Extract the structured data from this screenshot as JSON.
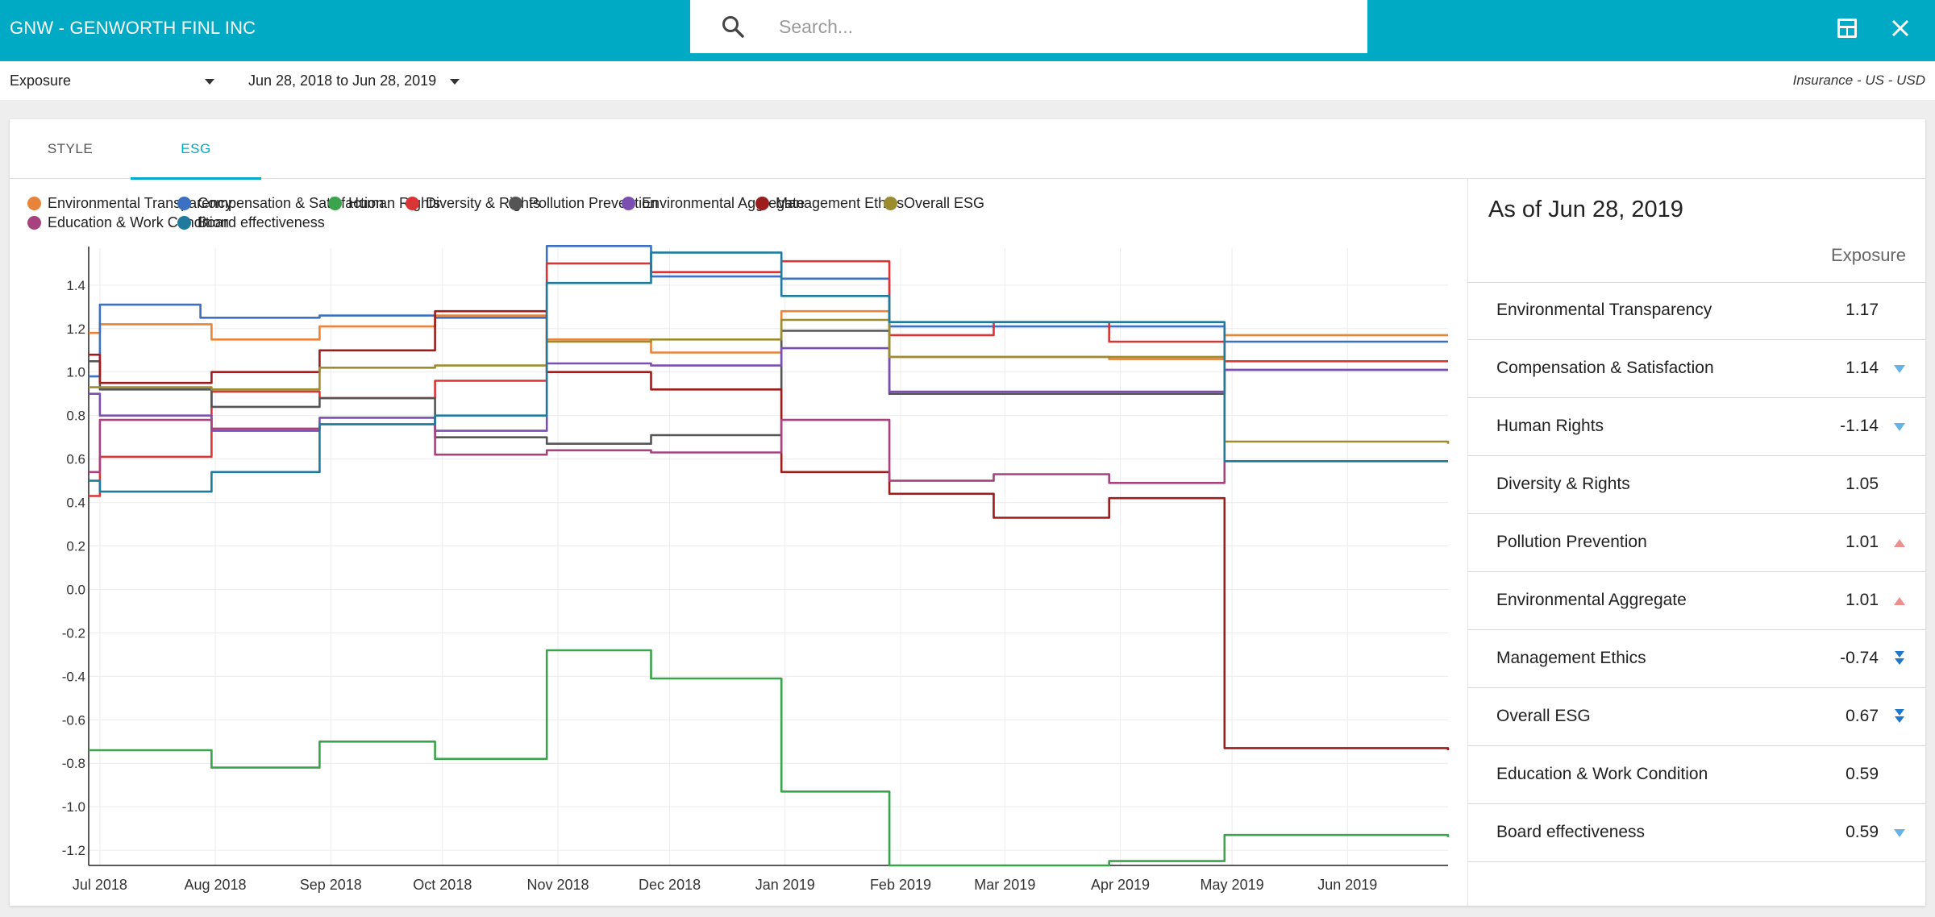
{
  "header": {
    "ticker": "GNW - GENWORTH FINL INC",
    "search_placeholder": "Search...",
    "icons": [
      "search-icon",
      "layout-icon",
      "close-icon"
    ]
  },
  "subheader": {
    "metric": "Exposure",
    "date_range": "Jun 28, 2018 to Jun 28, 2019",
    "sector": "Insurance - US - USD"
  },
  "tabs": [
    {
      "label": "STYLE",
      "active": false
    },
    {
      "label": "ESG",
      "active": true
    }
  ],
  "accent_color": "#00a9c4",
  "side_panel": {
    "title": "As of Jun 28, 2019",
    "column_header": "Exposure",
    "rows": [
      {
        "name": "Environmental Transparency",
        "value": "1.17",
        "arrow": "none"
      },
      {
        "name": "Compensation & Satisfaction",
        "value": "1.14",
        "arrow": "down"
      },
      {
        "name": "Human Rights",
        "value": "-1.14",
        "arrow": "down"
      },
      {
        "name": "Diversity & Rights",
        "value": "1.05",
        "arrow": "none"
      },
      {
        "name": "Pollution Prevention",
        "value": "1.01",
        "arrow": "up"
      },
      {
        "name": "Environmental Aggregate",
        "value": "1.01",
        "arrow": "up"
      },
      {
        "name": "Management Ethics",
        "value": "-0.74",
        "arrow": "double-down"
      },
      {
        "name": "Overall ESG",
        "value": "0.67",
        "arrow": "double-down"
      },
      {
        "name": "Education & Work Condition",
        "value": "0.59",
        "arrow": "none"
      },
      {
        "name": "Board effectiveness",
        "value": "0.59",
        "arrow": "down"
      }
    ],
    "arrow_colors": {
      "down": "#64b5e6",
      "up": "#ec8f8f",
      "double-down": "#1e78c8"
    }
  },
  "chart_data": {
    "type": "line",
    "xlabel": "",
    "ylabel": "",
    "x_range": [
      "2018-06-28",
      "2019-06-28"
    ],
    "ylim": [
      -1.27,
      1.57
    ],
    "y_ticks": [
      "-1.2",
      "-1.0",
      "-0.8",
      "-0.6",
      "-0.4",
      "-0.2",
      "0.0",
      "0.2",
      "0.4",
      "0.6",
      "0.8",
      "1.0",
      "1.2",
      "1.4"
    ],
    "x_ticks": [
      {
        "label": "Jul 2018",
        "date": "2018-07-01"
      },
      {
        "label": "Aug 2018",
        "date": "2018-08-01"
      },
      {
        "label": "Sep 2018",
        "date": "2018-09-01"
      },
      {
        "label": "Oct 2018",
        "date": "2018-10-01"
      },
      {
        "label": "Nov 2018",
        "date": "2018-11-01"
      },
      {
        "label": "Dec 2018",
        "date": "2018-12-01"
      },
      {
        "label": "Jan 2019",
        "date": "2019-01-01"
      },
      {
        "label": "Feb 2019",
        "date": "2019-02-01"
      },
      {
        "label": "Mar 2019",
        "date": "2019-03-01"
      },
      {
        "label": "Apr 2019",
        "date": "2019-04-01"
      },
      {
        "label": "May 2019",
        "date": "2019-05-01"
      },
      {
        "label": "Jun 2019",
        "date": "2019-06-01"
      }
    ],
    "grid": true,
    "legend_position": "top",
    "series": [
      {
        "name": "Environmental Transparency",
        "color": "#e8833a",
        "points": [
          [
            "2018-06-28",
            1.18
          ],
          [
            "2018-07-01",
            1.22
          ],
          [
            "2018-07-31",
            1.15
          ],
          [
            "2018-08-29",
            1.21
          ],
          [
            "2018-09-29",
            1.26
          ],
          [
            "2018-10-29",
            1.15
          ],
          [
            "2018-11-26",
            1.09
          ],
          [
            "2018-12-31",
            1.28
          ],
          [
            "2019-01-29",
            1.07
          ],
          [
            "2019-03-29",
            1.06
          ],
          [
            "2019-04-29",
            1.17
          ],
          [
            "2019-06-28",
            1.17
          ]
        ]
      },
      {
        "name": "Compensation & Satisfaction",
        "color": "#3b70c2",
        "points": [
          [
            "2018-06-28",
            0.98
          ],
          [
            "2018-07-01",
            1.31
          ],
          [
            "2018-07-28",
            1.25
          ],
          [
            "2018-08-29",
            1.26
          ],
          [
            "2018-09-29",
            1.25
          ],
          [
            "2018-10-29",
            1.58
          ],
          [
            "2018-11-26",
            1.44
          ],
          [
            "2018-12-31",
            1.43
          ],
          [
            "2019-01-29",
            1.21
          ],
          [
            "2019-04-29",
            1.14
          ],
          [
            "2019-06-28",
            1.14
          ]
        ]
      },
      {
        "name": "Human Rights",
        "color": "#3aa34b",
        "points": [
          [
            "2018-06-28",
            -0.74
          ],
          [
            "2018-07-31",
            -0.82
          ],
          [
            "2018-08-29",
            -0.7
          ],
          [
            "2018-09-29",
            -0.78
          ],
          [
            "2018-10-29",
            -0.28
          ],
          [
            "2018-11-26",
            -0.41
          ],
          [
            "2018-12-31",
            -0.93
          ],
          [
            "2019-01-29",
            -1.27
          ],
          [
            "2019-03-29",
            -1.25
          ],
          [
            "2019-04-29",
            -1.13
          ],
          [
            "2019-06-28",
            -1.14
          ]
        ]
      },
      {
        "name": "Diversity & Rights",
        "color": "#d93535",
        "points": [
          [
            "2018-06-28",
            0.43
          ],
          [
            "2018-07-01",
            0.61
          ],
          [
            "2018-07-31",
            0.91
          ],
          [
            "2018-08-29",
            0.88
          ],
          [
            "2018-09-29",
            0.96
          ],
          [
            "2018-10-29",
            1.5
          ],
          [
            "2018-11-26",
            1.46
          ],
          [
            "2018-12-31",
            1.51
          ],
          [
            "2019-01-29",
            1.17
          ],
          [
            "2019-02-26",
            1.23
          ],
          [
            "2019-03-29",
            1.14
          ],
          [
            "2019-04-29",
            1.05
          ],
          [
            "2019-06-28",
            1.05
          ]
        ]
      },
      {
        "name": "Pollution Prevention",
        "color": "#555555",
        "points": [
          [
            "2018-06-28",
            1.05
          ],
          [
            "2018-07-01",
            0.92
          ],
          [
            "2018-07-31",
            0.84
          ],
          [
            "2018-08-29",
            0.88
          ],
          [
            "2018-09-29",
            0.7
          ],
          [
            "2018-10-29",
            0.67
          ],
          [
            "2018-11-26",
            0.71
          ],
          [
            "2018-12-31",
            1.19
          ],
          [
            "2019-01-29",
            0.9
          ],
          [
            "2019-04-29",
            1.01
          ],
          [
            "2019-06-28",
            1.01
          ]
        ]
      },
      {
        "name": "Environmental Aggregate",
        "color": "#7a4fb0",
        "points": [
          [
            "2018-06-28",
            0.9
          ],
          [
            "2018-07-01",
            0.8
          ],
          [
            "2018-07-31",
            0.73
          ],
          [
            "2018-08-29",
            0.79
          ],
          [
            "2018-09-29",
            0.73
          ],
          [
            "2018-10-29",
            1.04
          ],
          [
            "2018-11-26",
            1.03
          ],
          [
            "2018-12-31",
            1.11
          ],
          [
            "2019-01-29",
            0.91
          ],
          [
            "2019-04-29",
            1.01
          ],
          [
            "2019-06-28",
            1.01
          ]
        ]
      },
      {
        "name": "Management Ethics",
        "color": "#9b1d1d",
        "points": [
          [
            "2018-06-28",
            1.08
          ],
          [
            "2018-07-01",
            0.95
          ],
          [
            "2018-07-31",
            1.0
          ],
          [
            "2018-08-29",
            1.1
          ],
          [
            "2018-09-29",
            1.28
          ],
          [
            "2018-10-29",
            1.0
          ],
          [
            "2018-11-26",
            0.92
          ],
          [
            "2018-12-31",
            0.54
          ],
          [
            "2019-01-29",
            0.44
          ],
          [
            "2019-02-26",
            0.33
          ],
          [
            "2019-03-29",
            0.42
          ],
          [
            "2019-04-29",
            -0.73
          ],
          [
            "2019-06-28",
            -0.74
          ]
        ]
      },
      {
        "name": "Overall ESG",
        "color": "#9c8c30",
        "points": [
          [
            "2018-06-28",
            0.93
          ],
          [
            "2018-07-31",
            0.92
          ],
          [
            "2018-08-29",
            1.02
          ],
          [
            "2018-09-29",
            1.03
          ],
          [
            "2018-10-29",
            1.14
          ],
          [
            "2018-11-26",
            1.15
          ],
          [
            "2018-12-31",
            1.24
          ],
          [
            "2019-01-29",
            1.07
          ],
          [
            "2019-04-29",
            0.68
          ],
          [
            "2019-06-28",
            0.67
          ]
        ]
      },
      {
        "name": "Education & Work Condition",
        "color": "#a6437e",
        "points": [
          [
            "2018-06-28",
            0.54
          ],
          [
            "2018-07-01",
            0.78
          ],
          [
            "2018-07-31",
            0.74
          ],
          [
            "2018-08-29",
            0.76
          ],
          [
            "2018-09-29",
            0.62
          ],
          [
            "2018-10-29",
            0.64
          ],
          [
            "2018-11-26",
            0.63
          ],
          [
            "2018-12-31",
            0.78
          ],
          [
            "2019-01-29",
            0.5
          ],
          [
            "2019-02-26",
            0.53
          ],
          [
            "2019-03-29",
            0.49
          ],
          [
            "2019-04-29",
            0.59
          ],
          [
            "2019-06-28",
            0.59
          ]
        ]
      },
      {
        "name": "Board effectiveness",
        "color": "#1f7a9c",
        "points": [
          [
            "2018-06-28",
            0.5
          ],
          [
            "2018-07-01",
            0.45
          ],
          [
            "2018-07-31",
            0.54
          ],
          [
            "2018-08-29",
            0.76
          ],
          [
            "2018-09-29",
            0.8
          ],
          [
            "2018-10-29",
            1.41
          ],
          [
            "2018-11-26",
            1.55
          ],
          [
            "2018-12-31",
            1.35
          ],
          [
            "2019-01-29",
            1.23
          ],
          [
            "2019-04-29",
            0.59
          ],
          [
            "2019-06-28",
            0.59
          ]
        ]
      }
    ]
  }
}
